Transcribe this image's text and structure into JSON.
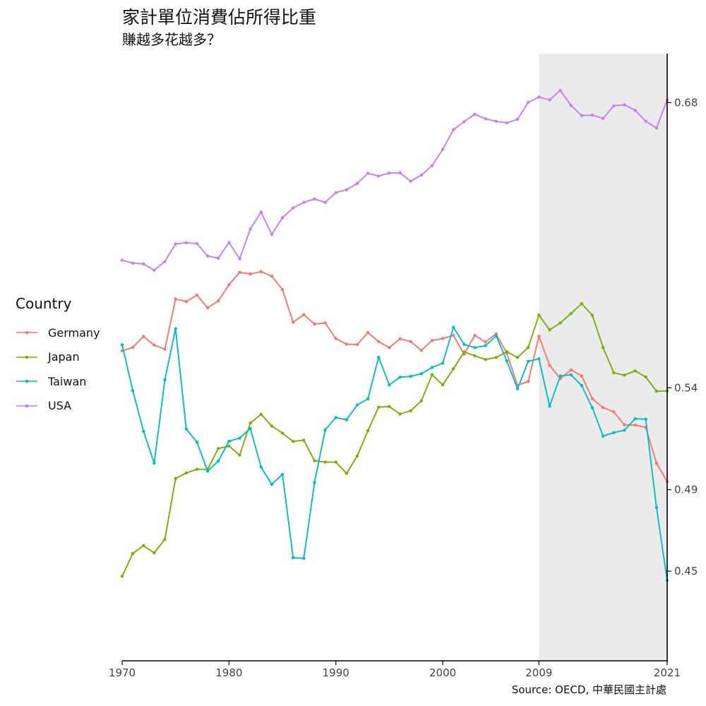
{
  "title": "家計單位消費佔所得比重",
  "subtitle": "賺越多花越多？",
  "source": "Source: OECD, 中華民國主計處",
  "legend": {
    "title": "Country"
  },
  "chart_data": {
    "type": "line",
    "x": [
      1970,
      1971,
      1972,
      1973,
      1974,
      1975,
      1976,
      1977,
      1978,
      1979,
      1980,
      1981,
      1982,
      1983,
      1984,
      1985,
      1986,
      1987,
      1988,
      1989,
      1990,
      1991,
      1992,
      1993,
      1994,
      1995,
      1996,
      1997,
      1998,
      1999,
      2000,
      2001,
      2002,
      2003,
      2004,
      2005,
      2006,
      2007,
      2008,
      2009,
      2010,
      2011,
      2012,
      2013,
      2014,
      2015,
      2016,
      2017,
      2018,
      2019,
      2020,
      2021
    ],
    "xlim": [
      1970,
      2021
    ],
    "ylim": [
      0.406,
      0.704
    ],
    "x_ticks": [
      1970,
      1980,
      1990,
      2000,
      2009,
      2021
    ],
    "y_ticks": [
      0.45,
      0.49,
      0.54,
      0.68
    ],
    "y_axis_position": "right",
    "shaded_region": {
      "x_start": 2009,
      "x_end": 2021,
      "color": "#ebebeb"
    },
    "legend_position": "left",
    "grid": false,
    "series": [
      {
        "name": "Germany",
        "color": "#F8766D",
        "values": [
          0.5582,
          0.5598,
          0.5652,
          0.561,
          0.5589,
          0.5836,
          0.5823,
          0.5855,
          0.5793,
          0.5826,
          0.5906,
          0.5967,
          0.5959,
          0.597,
          0.5948,
          0.5882,
          0.5722,
          0.5759,
          0.5713,
          0.5718,
          0.5642,
          0.5614,
          0.5612,
          0.5671,
          0.5627,
          0.5597,
          0.564,
          0.5627,
          0.5584,
          0.5632,
          0.5642,
          0.5657,
          0.5565,
          0.5657,
          0.5625,
          0.5665,
          0.5569,
          0.5412,
          0.5431,
          0.5653,
          0.551,
          0.5445,
          0.5488,
          0.5458,
          0.5346,
          0.5303,
          0.5282,
          0.5218,
          0.5217,
          0.5206,
          0.503,
          0.494
        ]
      },
      {
        "name": "Japan",
        "color": "#7CAE00",
        "values": [
          0.4475,
          0.4587,
          0.4625,
          0.459,
          0.4656,
          0.4955,
          0.4982,
          0.5,
          0.5,
          0.5102,
          0.5114,
          0.507,
          0.5227,
          0.527,
          0.5212,
          0.5177,
          0.5137,
          0.5143,
          0.5042,
          0.5035,
          0.5035,
          0.498,
          0.5065,
          0.519,
          0.5305,
          0.5308,
          0.5271,
          0.5287,
          0.5336,
          0.5464,
          0.5414,
          0.5494,
          0.5576,
          0.5557,
          0.5539,
          0.5549,
          0.5577,
          0.5549,
          0.5598,
          0.5757,
          0.5684,
          0.5718,
          0.5765,
          0.5813,
          0.5756,
          0.5598,
          0.5474,
          0.5462,
          0.5483,
          0.5453,
          0.5383,
          0.5385
        ]
      },
      {
        "name": "Taiwan",
        "color": "#00BFC4",
        "values": [
          0.5611,
          0.5386,
          0.5187,
          0.503,
          0.5439,
          0.569,
          0.5198,
          0.5133,
          0.4991,
          0.504,
          0.5138,
          0.5153,
          0.52,
          0.5011,
          0.4926,
          0.4975,
          0.4566,
          0.4563,
          0.4935,
          0.5193,
          0.5254,
          0.5243,
          0.5316,
          0.5346,
          0.555,
          0.5414,
          0.5452,
          0.5456,
          0.5469,
          0.55,
          0.5521,
          0.5697,
          0.5613,
          0.5597,
          0.5607,
          0.5655,
          0.5532,
          0.5395,
          0.553,
          0.5542,
          0.531,
          0.5458,
          0.5464,
          0.5411,
          0.5302,
          0.5163,
          0.518,
          0.5192,
          0.5248,
          0.5246,
          0.4813,
          0.4455
        ]
      },
      {
        "name": "USA",
        "color": "#C77CFF",
        "values": [
          0.6026,
          0.6012,
          0.6008,
          0.5977,
          0.602,
          0.6106,
          0.6112,
          0.6108,
          0.6047,
          0.6036,
          0.6113,
          0.6033,
          0.618,
          0.6262,
          0.6153,
          0.6235,
          0.6283,
          0.631,
          0.6327,
          0.631,
          0.6358,
          0.6372,
          0.6403,
          0.6453,
          0.6439,
          0.6454,
          0.6455,
          0.6414,
          0.6444,
          0.649,
          0.657,
          0.6667,
          0.6706,
          0.6743,
          0.672,
          0.6708,
          0.67,
          0.6718,
          0.6801,
          0.6827,
          0.6813,
          0.686,
          0.6786,
          0.6736,
          0.6739,
          0.6722,
          0.6784,
          0.6789,
          0.6762,
          0.6708,
          0.6675,
          0.6813
        ]
      }
    ]
  }
}
